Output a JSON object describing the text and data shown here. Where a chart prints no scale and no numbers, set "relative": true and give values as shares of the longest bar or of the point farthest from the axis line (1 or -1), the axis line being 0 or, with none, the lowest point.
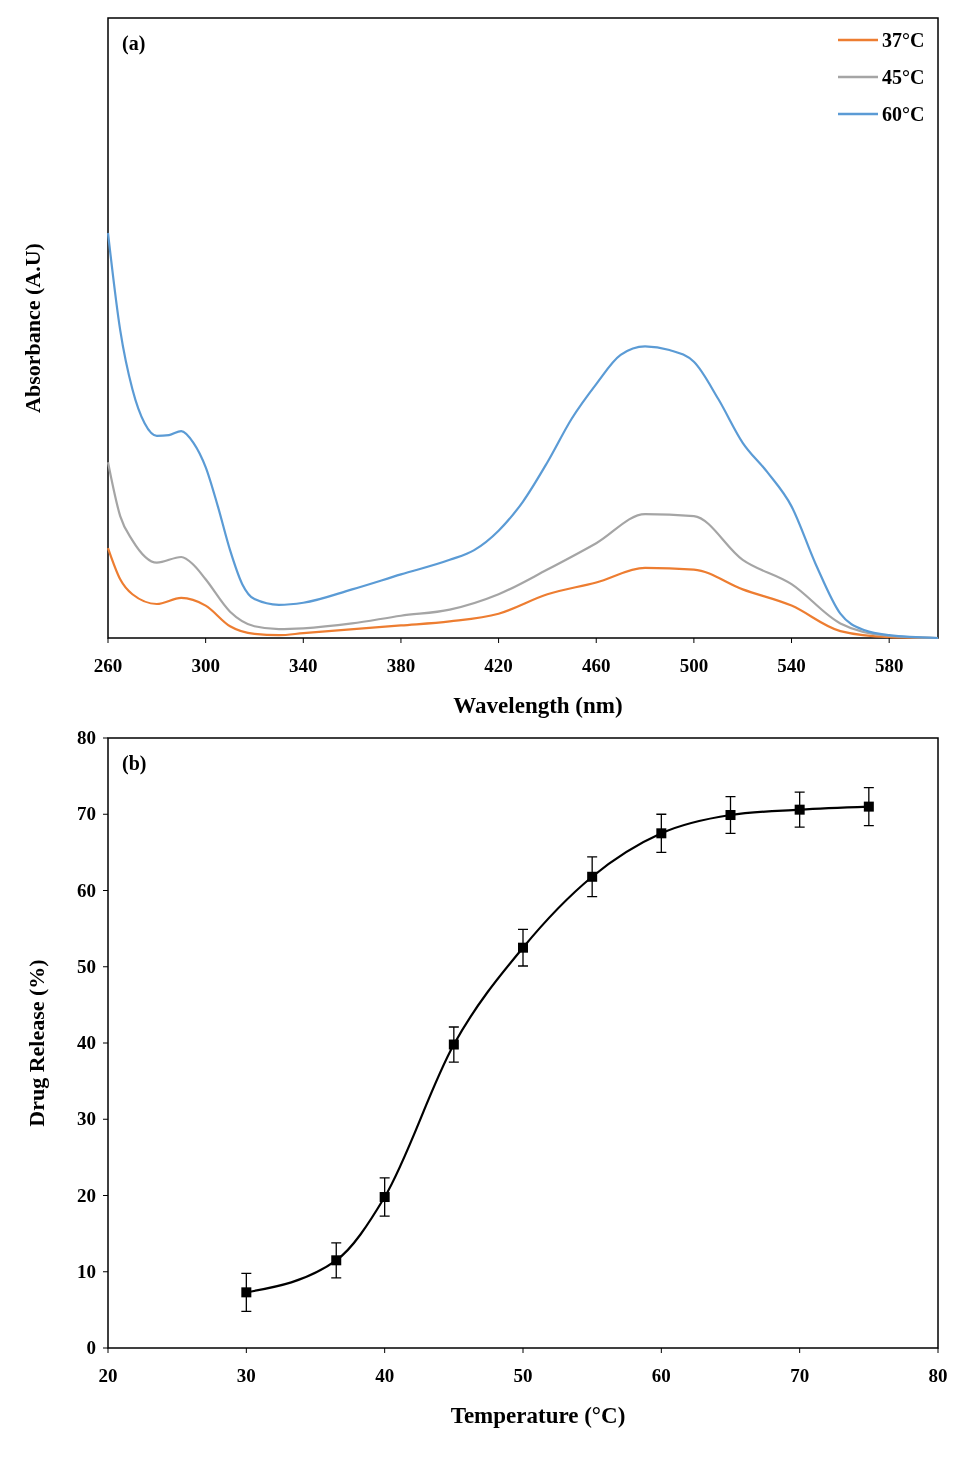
{
  "chart_data": [
    {
      "type": "line",
      "title": "(a)",
      "xlabel": "Wavelength (nm)",
      "ylabel": "Absorbance (A.U)",
      "relative": true,
      "xlim": [
        260,
        600
      ],
      "xticks": [
        260,
        300,
        340,
        380,
        420,
        460,
        500,
        540,
        580
      ],
      "legend": "top right",
      "line_style": "solid",
      "series": [
        {
          "name": "37°C",
          "color": "#ed7d31",
          "x": [
            260,
            265,
            270,
            280,
            290,
            300,
            310,
            320,
            330,
            340,
            380,
            400,
            420,
            440,
            460,
            480,
            500,
            520,
            540,
            560,
            580,
            600
          ],
          "values": [
            0.222,
            0.145,
            0.108,
            0.084,
            0.099,
            0.08,
            0.029,
            0.01,
            0.007,
            0.012,
            0.031,
            0.041,
            0.06,
            0.108,
            0.137,
            0.173,
            0.169,
            0.12,
            0.08,
            0.017,
            0.002,
            0
          ]
        },
        {
          "name": "45°C",
          "color": "#a5a5a5",
          "x": [
            260,
            265,
            270,
            280,
            290,
            295,
            300,
            310,
            320,
            330,
            340,
            360,
            380,
            400,
            420,
            440,
            460,
            480,
            500,
            520,
            540,
            560,
            580,
            600
          ],
          "values": [
            0.434,
            0.301,
            0.241,
            0.186,
            0.2,
            0.181,
            0.145,
            0.065,
            0.029,
            0.022,
            0.024,
            0.036,
            0.055,
            0.07,
            0.108,
            0.169,
            0.234,
            0.306,
            0.301,
            0.193,
            0.133,
            0.036,
            0.005,
            0
          ]
        },
        {
          "name": "60°C",
          "color": "#5b9bd5",
          "x": [
            260,
            265,
            270,
            275,
            280,
            285,
            290,
            295,
            300,
            305,
            310,
            315,
            320,
            330,
            340,
            360,
            380,
            400,
            410,
            420,
            430,
            440,
            450,
            460,
            470,
            480,
            490,
            500,
            510,
            520,
            530,
            540,
            550,
            560,
            570,
            580,
            600
          ],
          "values": [
            1,
            0.76,
            0.614,
            0.53,
            0.499,
            0.501,
            0.511,
            0.482,
            0.422,
            0.325,
            0.217,
            0.133,
            0.096,
            0.082,
            0.087,
            0.12,
            0.157,
            0.193,
            0.217,
            0.265,
            0.337,
            0.434,
            0.542,
            0.627,
            0.699,
            0.72,
            0.711,
            0.682,
            0.59,
            0.482,
            0.41,
            0.325,
            0.181,
            0.06,
            0.019,
            0.007,
            0
          ]
        }
      ]
    },
    {
      "type": "line",
      "title": "(b)",
      "xlabel": "Temperature (°C)",
      "ylabel": "Drug Release (%)",
      "xlim": [
        20,
        80
      ],
      "xticks": [
        20,
        30,
        40,
        50,
        60,
        70,
        80
      ],
      "ylim": [
        0,
        80
      ],
      "yticks": [
        0,
        10,
        20,
        30,
        40,
        50,
        60,
        70,
        80
      ],
      "marker": "square",
      "line_style": "solid",
      "series": [
        {
          "color": "#000000",
          "x": [
            30,
            36.5,
            40,
            45,
            50,
            55,
            60,
            65,
            70,
            75
          ],
          "values": [
            7.3,
            11.5,
            19.8,
            39.8,
            52.5,
            61.8,
            67.5,
            69.9,
            70.6,
            71
          ],
          "errors": [
            2.5,
            2.3,
            2.5,
            2.3,
            2.4,
            2.6,
            2.5,
            2.4,
            2.3,
            2.5
          ]
        }
      ]
    }
  ]
}
